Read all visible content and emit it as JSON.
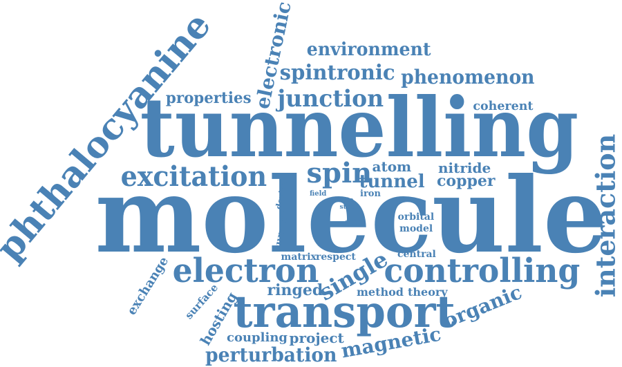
{
  "colors": {
    "word": "#4a82b5",
    "background": "#ffffff"
  },
  "words": [
    {
      "key": "tunnelling",
      "text": "tunnelling"
    },
    {
      "key": "molecule",
      "text": "molecule"
    },
    {
      "key": "phthalocyanine",
      "text": "phthalocyanine"
    },
    {
      "key": "transport",
      "text": "transport"
    },
    {
      "key": "interaction",
      "text": "interaction"
    },
    {
      "key": "electron",
      "text": "electron"
    },
    {
      "key": "controlling",
      "text": "controlling"
    },
    {
      "key": "excitation",
      "text": "excitation"
    },
    {
      "key": "junction",
      "text": "junction"
    },
    {
      "key": "spintronic",
      "text": "spintronic"
    },
    {
      "key": "environment",
      "text": "environment"
    },
    {
      "key": "phenomenon",
      "text": "phenomenon"
    },
    {
      "key": "electronic",
      "text": "electronic"
    },
    {
      "key": "properties",
      "text": "properties"
    },
    {
      "key": "coherent",
      "text": "coherent"
    },
    {
      "key": "spin",
      "text": "spin"
    },
    {
      "key": "atom",
      "text": "atom"
    },
    {
      "key": "tunnel",
      "text": "tunnel"
    },
    {
      "key": "nitride",
      "text": "nitride"
    },
    {
      "key": "copper",
      "text": "copper"
    },
    {
      "key": "iron",
      "text": "iron"
    },
    {
      "key": "field",
      "text": "field"
    },
    {
      "key": "device",
      "text": "device"
    },
    {
      "key": "current",
      "text": "current"
    },
    {
      "key": "site",
      "text": "site"
    },
    {
      "key": "step",
      "text": "step"
    },
    {
      "key": "acc",
      "text": "acc"
    },
    {
      "key": "orbital",
      "text": "orbital"
    },
    {
      "key": "model",
      "text": "model"
    },
    {
      "key": "matrix",
      "text": "matrix"
    },
    {
      "key": "respect",
      "text": "respect"
    },
    {
      "key": "central",
      "text": "central"
    },
    {
      "key": "single",
      "text": "single"
    },
    {
      "key": "exchange",
      "text": "exchange"
    },
    {
      "key": "surface",
      "text": "surface"
    },
    {
      "key": "hosting",
      "text": "hosting"
    },
    {
      "key": "ringed",
      "text": "ringed"
    },
    {
      "key": "method",
      "text": "method"
    },
    {
      "key": "theory",
      "text": "theory"
    },
    {
      "key": "organic",
      "text": "organic"
    },
    {
      "key": "coupling",
      "text": "coupling"
    },
    {
      "key": "project",
      "text": "project"
    },
    {
      "key": "magnetic",
      "text": "magnetic"
    },
    {
      "key": "perturbation",
      "text": "perturbation"
    }
  ]
}
